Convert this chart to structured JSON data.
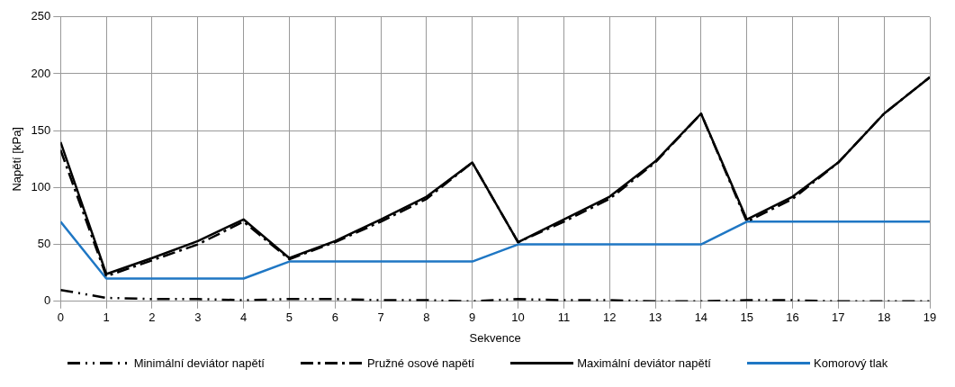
{
  "chart_data": {
    "type": "line",
    "xlabel": "Sekvence",
    "ylabel": "Napětí [kPa]",
    "x": [
      0,
      1,
      2,
      3,
      4,
      5,
      6,
      7,
      8,
      9,
      10,
      11,
      12,
      13,
      14,
      15,
      16,
      17,
      18,
      19
    ],
    "xlim": [
      0,
      19
    ],
    "xticks": [
      0,
      1,
      2,
      3,
      4,
      5,
      6,
      7,
      8,
      9,
      10,
      11,
      12,
      13,
      14,
      15,
      16,
      17,
      18,
      19
    ],
    "series": [
      {
        "name": "Minimální deviátor napětí",
        "color": "#000000",
        "line_style": "dashdotdot",
        "values": [
          10,
          3,
          2,
          2,
          1,
          2,
          2,
          1,
          1,
          0,
          2,
          1,
          1,
          0,
          0,
          1,
          1,
          0,
          0,
          0
        ]
      },
      {
        "name": "Pružné osové napětí",
        "color": "#000000",
        "line_style": "dashdot",
        "values": [
          133,
          22,
          36,
          50,
          70,
          37,
          52,
          70,
          90,
          122,
          52,
          70,
          90,
          122,
          165,
          70,
          90,
          122,
          165,
          197
        ]
      },
      {
        "name": "Maximální deviátor napětí",
        "color": "#000000",
        "line_style": "solid",
        "values": [
          140,
          24,
          38,
          53,
          72,
          38,
          53,
          72,
          92,
          122,
          52,
          72,
          92,
          123,
          165,
          72,
          92,
          122,
          165,
          197
        ]
      },
      {
        "name": "Komorový tlak",
        "color": "#1f77c4",
        "line_style": "solid",
        "values": [
          70,
          20,
          20,
          20,
          20,
          35,
          35,
          35,
          35,
          35,
          50,
          50,
          50,
          50,
          50,
          70,
          70,
          70,
          70,
          70
        ]
      }
    ],
    "ylim": [
      0,
      250
    ],
    "yticks": [
      0,
      50,
      100,
      150,
      200,
      250
    ],
    "grid": true,
    "legend": "bottom",
    "marker": "none"
  }
}
